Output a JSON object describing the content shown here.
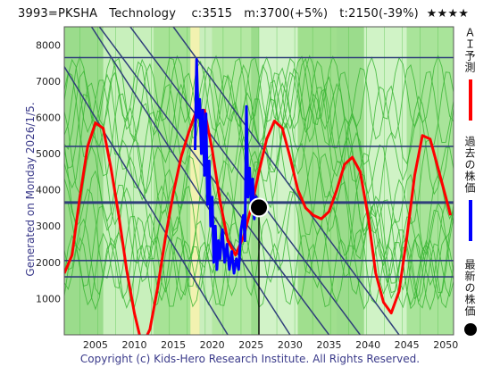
{
  "header": {
    "code": "3993=PKSHA",
    "sector": "Technology",
    "current": "c:3515",
    "mid": "m:3700(+5%)",
    "target": "t:2150(-39%)",
    "stars": "★★★★"
  },
  "side_label": "Generated on Monday 2026/1/5.",
  "footer": "Copyright (c) Kids-Hero Research Institute. All Rights Reserved.",
  "legend": {
    "ai_forecast": "ＡＩ予測",
    "past_price": "過去の株価",
    "latest_price": "最新の株価",
    "ai_color": "#ff0000",
    "past_color": "#0000ff",
    "latest_color": "#000000"
  },
  "chart_data": {
    "type": "line",
    "xlim": [
      2001,
      2051
    ],
    "ylim": [
      0,
      8500
    ],
    "x_ticks": [
      2005,
      2010,
      2015,
      2020,
      2025,
      2030,
      2035,
      2040,
      2045,
      2050
    ],
    "y_ticks": [
      1000,
      2000,
      3000,
      4000,
      5000,
      6000,
      7000,
      8000
    ],
    "horizontal_levels": [
      7650,
      5200,
      3650,
      2050,
      1600
    ],
    "latest_point": {
      "x": 2026.0,
      "y": 3515
    },
    "series": [
      {
        "role": "ai_forecast",
        "color": "#ff0000",
        "points": [
          [
            2001,
            1700
          ],
          [
            2002,
            2200
          ],
          [
            2003,
            3800
          ],
          [
            2004,
            5200
          ],
          [
            2005,
            5850
          ],
          [
            2006,
            5700
          ],
          [
            2007,
            4600
          ],
          [
            2008,
            3300
          ],
          [
            2009,
            1800
          ],
          [
            2010,
            600
          ],
          [
            2011,
            -300
          ],
          [
            2012,
            150
          ],
          [
            2013,
            1300
          ],
          [
            2014,
            2700
          ],
          [
            2015,
            3900
          ],
          [
            2016,
            4900
          ],
          [
            2017,
            5600
          ],
          [
            2018,
            6200
          ],
          [
            2019,
            6200
          ],
          [
            2020,
            5100
          ],
          [
            2021,
            3700
          ],
          [
            2022,
            2600
          ],
          [
            2023,
            2200
          ],
          [
            2024,
            2700
          ],
          [
            2025,
            3500
          ],
          [
            2026,
            4500
          ],
          [
            2027,
            5400
          ],
          [
            2028,
            5900
          ],
          [
            2029,
            5700
          ],
          [
            2030,
            4900
          ],
          [
            2031,
            4000
          ],
          [
            2032,
            3500
          ],
          [
            2033,
            3300
          ],
          [
            2034,
            3200
          ],
          [
            2035,
            3400
          ],
          [
            2036,
            4000
          ],
          [
            2037,
            4700
          ],
          [
            2038,
            4900
          ],
          [
            2039,
            4500
          ],
          [
            2040,
            3300
          ],
          [
            2041,
            1700
          ],
          [
            2042,
            900
          ],
          [
            2043,
            600
          ],
          [
            2044,
            1200
          ],
          [
            2045,
            2700
          ],
          [
            2046,
            4400
          ],
          [
            2047,
            5500
          ],
          [
            2048,
            5400
          ],
          [
            2049,
            4600
          ],
          [
            2050,
            3800
          ],
          [
            2050.6,
            3300
          ]
        ]
      },
      {
        "role": "past_price",
        "color": "#0000ff",
        "points": [
          [
            2017.8,
            5100
          ],
          [
            2018.0,
            7600
          ],
          [
            2018.2,
            6000
          ],
          [
            2018.4,
            6500
          ],
          [
            2018.6,
            5000
          ],
          [
            2018.8,
            6200
          ],
          [
            2019.0,
            4400
          ],
          [
            2019.2,
            6100
          ],
          [
            2019.4,
            3600
          ],
          [
            2019.6,
            4800
          ],
          [
            2019.8,
            3000
          ],
          [
            2020.0,
            3800
          ],
          [
            2020.2,
            2000
          ],
          [
            2020.4,
            3000
          ],
          [
            2020.6,
            1800
          ],
          [
            2020.8,
            2600
          ],
          [
            2021.0,
            2100
          ],
          [
            2021.3,
            2900
          ],
          [
            2021.6,
            2000
          ],
          [
            2021.9,
            2500
          ],
          [
            2022.2,
            1800
          ],
          [
            2022.5,
            2300
          ],
          [
            2022.8,
            1700
          ],
          [
            2023.1,
            2100
          ],
          [
            2023.4,
            1800
          ],
          [
            2023.7,
            2900
          ],
          [
            2024.0,
            3300
          ],
          [
            2024.2,
            2600
          ],
          [
            2024.4,
            6300
          ],
          [
            2024.6,
            3800
          ],
          [
            2024.8,
            4600
          ],
          [
            2025.0,
            3700
          ],
          [
            2025.2,
            4300
          ],
          [
            2025.4,
            3200
          ],
          [
            2025.6,
            3800
          ],
          [
            2025.8,
            3515
          ]
        ]
      }
    ]
  }
}
